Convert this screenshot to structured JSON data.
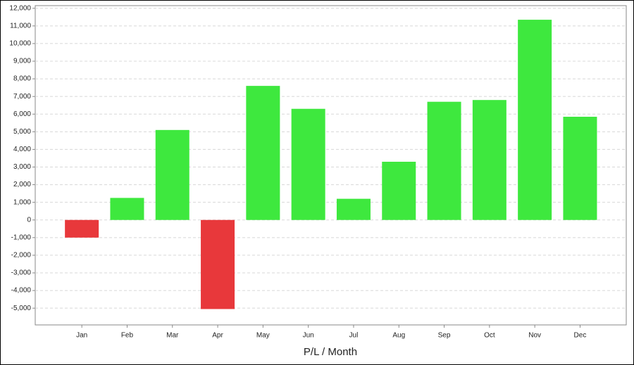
{
  "chart_data": {
    "type": "bar",
    "x_label": "P/L / Month",
    "categories": [
      "Jan",
      "Feb",
      "Mar",
      "Apr",
      "May",
      "Jun",
      "Jul",
      "Aug",
      "Sep",
      "Oct",
      "Nov",
      "Dec"
    ],
    "values": [
      -1000,
      1250,
      5100,
      -5050,
      7600,
      6300,
      1200,
      3300,
      6700,
      6800,
      11350,
      5850
    ],
    "colors": [
      "#e8383b",
      "#3ee83e",
      "#3ee83e",
      "#e8383b",
      "#3ee83e",
      "#3ee83e",
      "#3ee83e",
      "#3ee83e",
      "#3ee83e",
      "#3ee83e",
      "#3ee83e",
      "#3ee83e"
    ],
    "ylim": [
      -5950,
      12150
    ],
    "yticks": [
      {
        "value": -5000,
        "label": "-5,000"
      },
      {
        "value": -4000,
        "label": "-4,000"
      },
      {
        "value": -3000,
        "label": "-3,000"
      },
      {
        "value": -2000,
        "label": "-2,000"
      },
      {
        "value": -1000,
        "label": "-1,000"
      },
      0,
      {
        "value": 1000,
        "label": "1,000"
      },
      {
        "value": 2000,
        "label": "2,000"
      },
      {
        "value": 3000,
        "label": "3,000"
      },
      {
        "value": 4000,
        "label": "4,000"
      },
      {
        "value": 5000,
        "label": "5,000"
      },
      {
        "value": 6000,
        "label": "6,000"
      },
      {
        "value": 7000,
        "label": "7,000"
      },
      {
        "value": 8000,
        "label": "8,000"
      },
      {
        "value": 9000,
        "label": "9,000"
      },
      {
        "value": 10000,
        "label": "10,000"
      },
      {
        "value": 11000,
        "label": "11,000"
      },
      {
        "value": 12000,
        "label": "12,000"
      }
    ],
    "grid": true
  }
}
